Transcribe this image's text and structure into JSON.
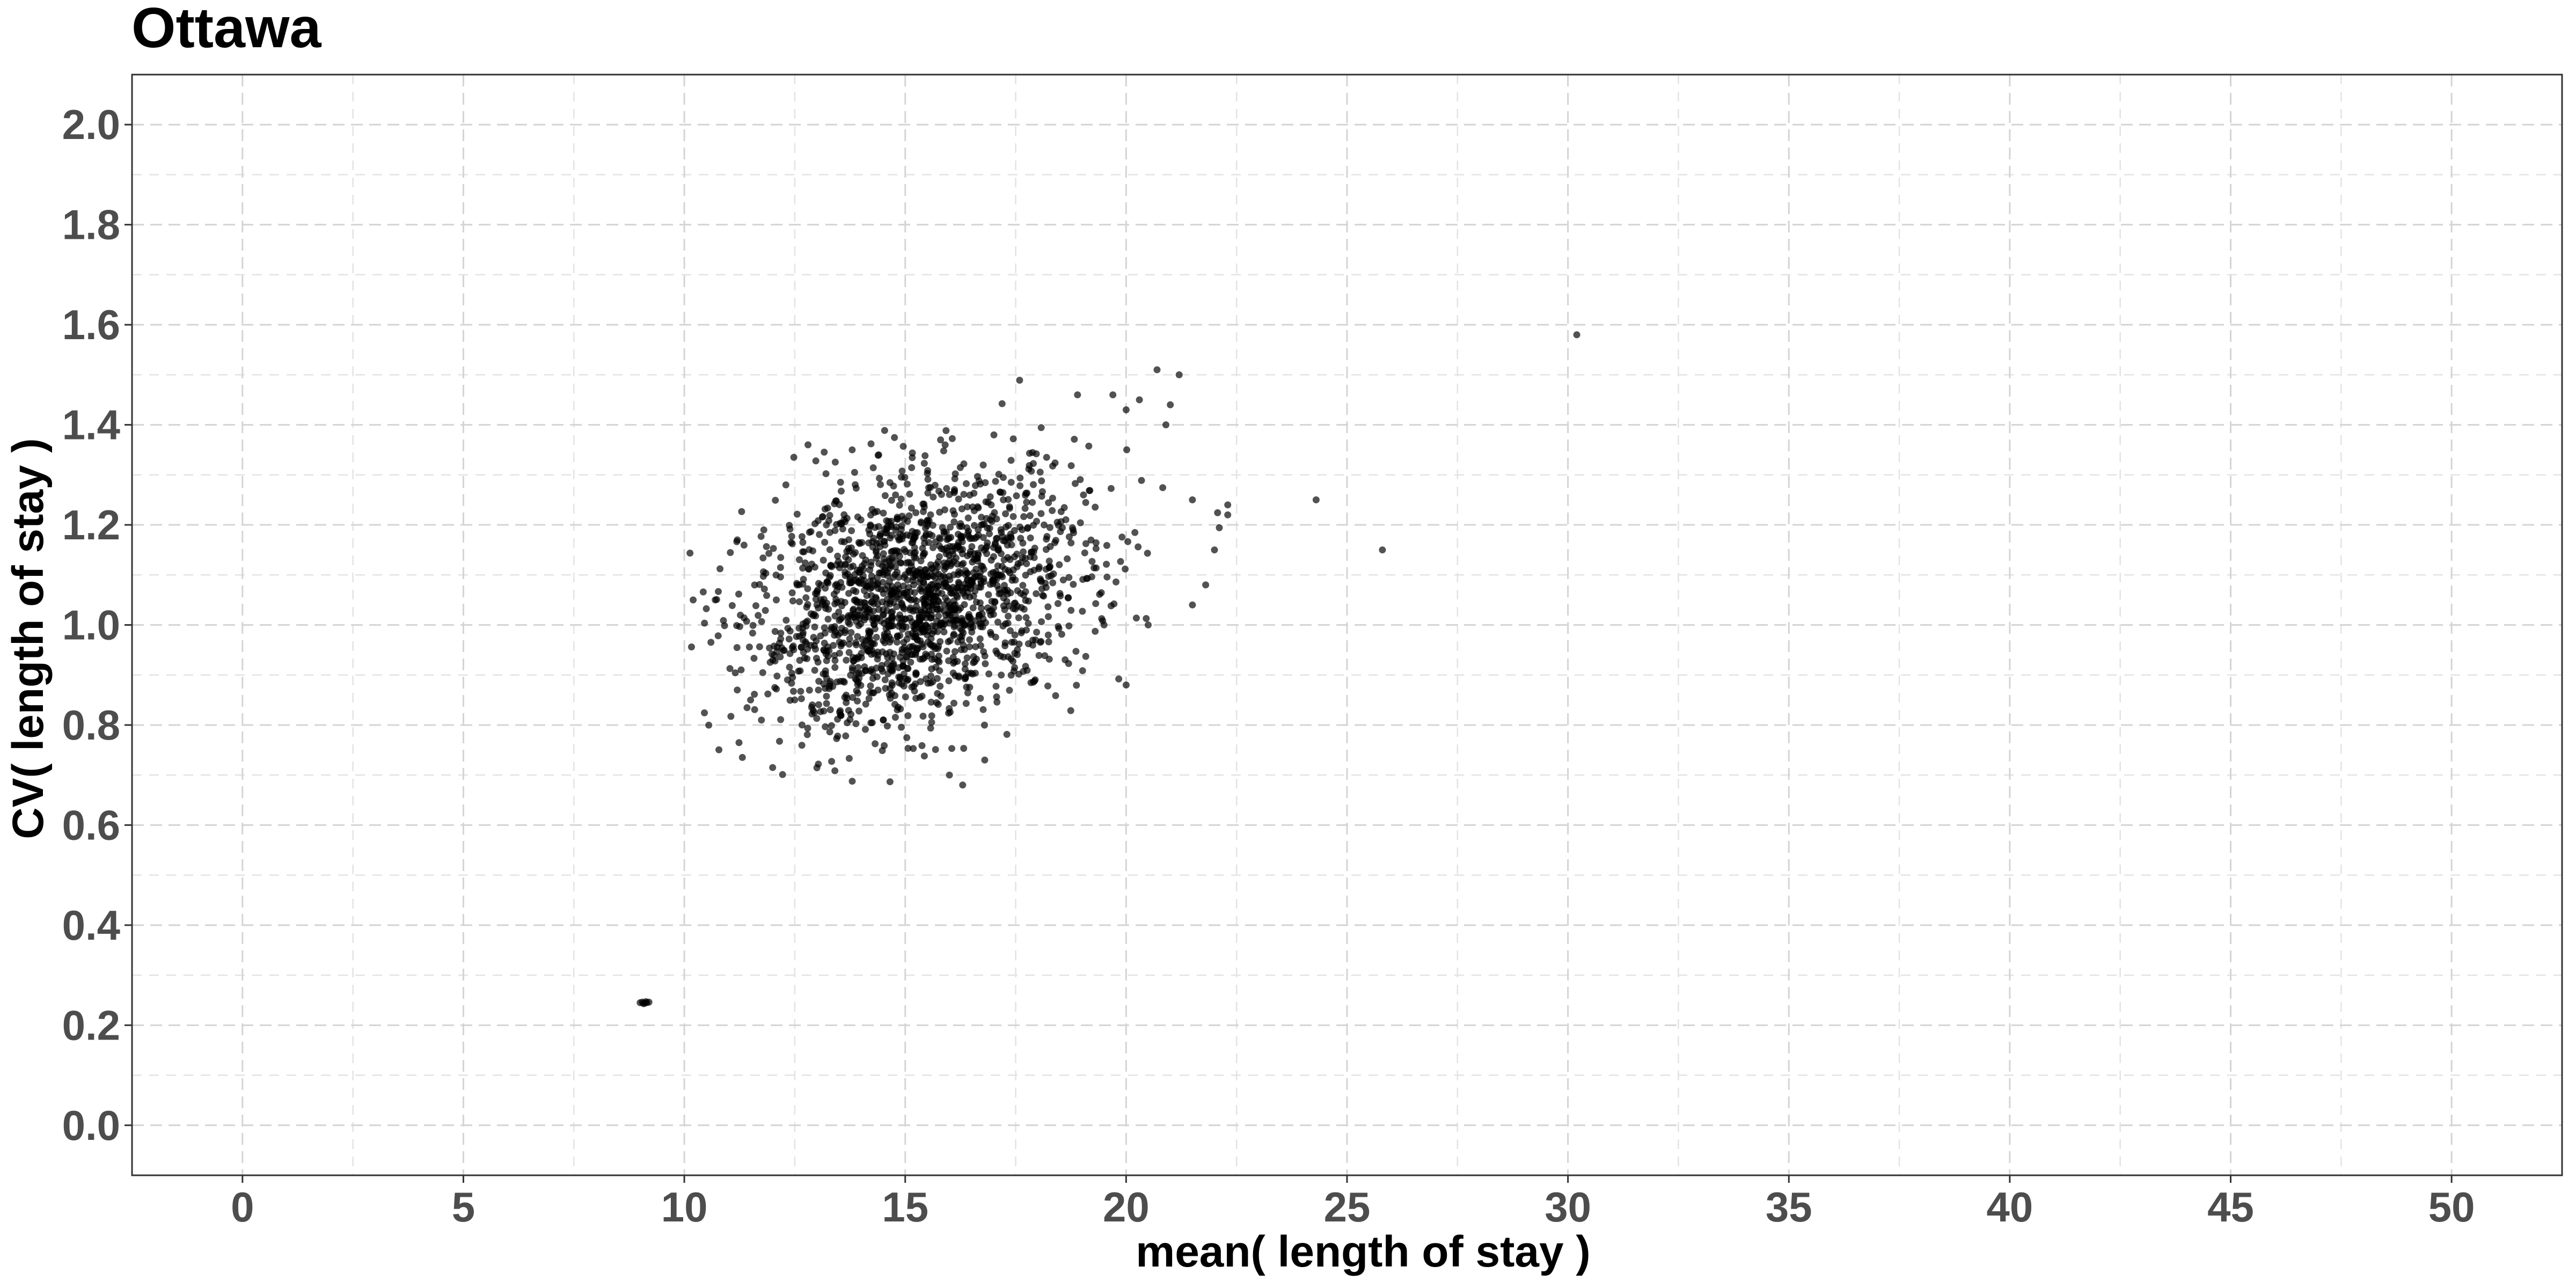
{
  "chart_data": {
    "type": "scatter",
    "title": "Ottawa",
    "xlabel": "mean( length of stay )",
    "ylabel": "CV( length of stay )",
    "xlim": [
      -2.5,
      52.5
    ],
    "ylim": [
      -0.1,
      2.1
    ],
    "x_ticks": [
      0,
      5,
      10,
      15,
      20,
      25,
      30,
      35,
      40,
      45,
      50
    ],
    "y_ticks": [
      "0.0",
      "0.2",
      "0.4",
      "0.6",
      "0.8",
      "1.0",
      "1.2",
      "1.4",
      "1.6",
      "1.8",
      "2.0"
    ],
    "x_minor": [
      2.5,
      7.5,
      12.5,
      17.5,
      22.5,
      27.5,
      32.5,
      37.5,
      42.5,
      47.5
    ],
    "y_minor": [
      0.1,
      0.3,
      0.5,
      0.7,
      0.9,
      1.1,
      1.3,
      1.5,
      1.7,
      1.9
    ],
    "grid": true,
    "legend": "none",
    "point_color": "#000000",
    "cluster": {
      "count": 1800,
      "center_x": 15.3,
      "center_y": 1.05,
      "sd_x": 1.9,
      "sd_y": 0.125,
      "correlation": 0.3,
      "x_range": [
        10.0,
        22.5
      ],
      "y_range": [
        0.68,
        1.52
      ]
    },
    "points": [
      [
        9.0,
        0.245
      ],
      [
        9.05,
        0.246
      ],
      [
        9.1,
        0.244
      ],
      [
        9.15,
        0.245
      ],
      [
        9.2,
        0.246
      ],
      [
        9.08,
        0.243
      ],
      [
        9.13,
        0.247
      ],
      [
        30.2,
        1.58
      ],
      [
        25.8,
        1.15
      ],
      [
        24.3,
        1.25
      ],
      [
        21.2,
        1.5
      ],
      [
        20.7,
        1.51
      ],
      [
        20.3,
        1.45
      ],
      [
        20.0,
        1.43
      ],
      [
        21.0,
        1.44
      ],
      [
        20.9,
        1.4
      ],
      [
        19.7,
        1.46
      ],
      [
        18.9,
        1.46
      ],
      [
        21.5,
        1.25
      ],
      [
        22.0,
        1.15
      ],
      [
        22.3,
        1.22
      ],
      [
        21.8,
        1.08
      ],
      [
        21.5,
        1.04
      ],
      [
        22.3,
        1.24
      ],
      [
        12.0,
        0.715
      ],
      [
        16.3,
        0.68
      ],
      [
        16.8,
        0.73
      ],
      [
        16.0,
        0.7
      ],
      [
        11.5,
        0.85
      ],
      [
        10.7,
        1.05
      ],
      [
        10.2,
        1.05
      ],
      [
        11.2,
        1.17
      ],
      [
        11.8,
        1.19
      ],
      [
        12.3,
        1.28
      ],
      [
        20.0,
        0.88
      ],
      [
        19.5,
        1.0
      ],
      [
        20.5,
        1.0
      ],
      [
        13.8,
        1.35
      ],
      [
        15.8,
        1.37
      ],
      [
        12.8,
        1.36
      ],
      [
        14.4,
        1.34
      ]
    ]
  }
}
